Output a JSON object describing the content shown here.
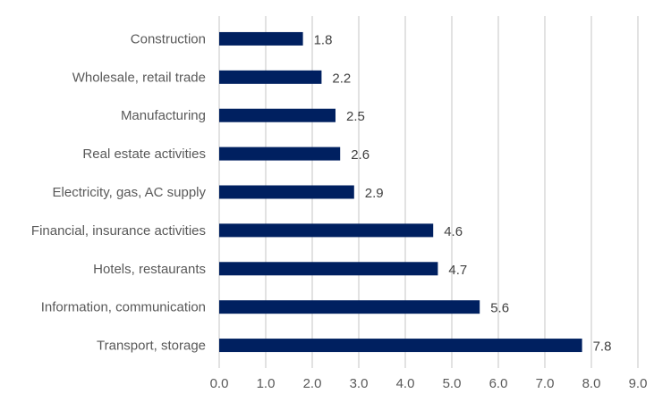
{
  "chart_data": {
    "type": "bar",
    "orientation": "horizontal",
    "title": "",
    "xlabel": "",
    "ylabel": "",
    "categories": [
      "Construction",
      "Wholesale, retail trade",
      "Manufacturing",
      "Real estate activities",
      "Electricity, gas, AC supply",
      "Financial, insurance activities",
      "Hotels, restaurants",
      "Information, communication",
      "Transport, storage"
    ],
    "values": [
      1.8,
      2.2,
      2.5,
      2.6,
      2.9,
      4.6,
      4.7,
      5.6,
      7.8
    ],
    "data_labels": [
      "1.8",
      "2.2",
      "2.5",
      "2.6",
      "2.9",
      "4.6",
      "4.7",
      "5.6",
      "7.8"
    ],
    "xlim": [
      0,
      9
    ],
    "x_ticks": [
      "0.0",
      "1.0",
      "2.0",
      "3.0",
      "4.0",
      "5.0",
      "6.0",
      "7.0",
      "8.0",
      "9.0"
    ],
    "grid": "vertical",
    "legend": "none",
    "colors": {
      "bar": "#002060",
      "grid": "#d9d9d9",
      "text": "#595959"
    }
  }
}
